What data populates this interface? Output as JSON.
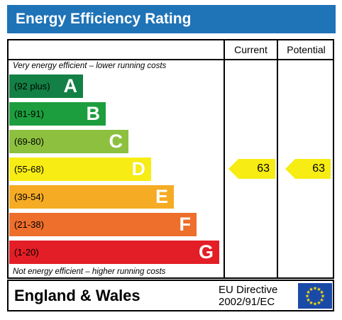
{
  "header": {
    "title": "Energy Efficiency Rating"
  },
  "columns": {
    "current": "Current",
    "potential": "Potential"
  },
  "notes": {
    "top": "Very energy efficient – lower running costs",
    "bottom": "Not energy efficient – higher running costs"
  },
  "chart_data": {
    "type": "bar",
    "title": "Energy Efficiency Rating",
    "bands": [
      {
        "range": "(92 plus)",
        "letter": "A",
        "color": "#138045",
        "letter_color": "#ffffff"
      },
      {
        "range": "(81-91)",
        "letter": "B",
        "color": "#1d9e3e",
        "letter_color": "#ffffff"
      },
      {
        "range": "(69-80)",
        "letter": "C",
        "color": "#8dc03f",
        "letter_color": "#ffffff"
      },
      {
        "range": "(55-68)",
        "letter": "D",
        "color": "#f7ec14",
        "letter_color": "#ffffff"
      },
      {
        "range": "(39-54)",
        "letter": "E",
        "color": "#f5ab24",
        "letter_color": "#ffffff"
      },
      {
        "range": "(21-38)",
        "letter": "F",
        "color": "#ee6e2b",
        "letter_color": "#ffffff"
      },
      {
        "range": "(1-20)",
        "letter": "G",
        "color": "#e31e26",
        "letter_color": "#ffffff"
      }
    ],
    "current": {
      "value": 63,
      "band": "D",
      "color": "#f7ec14"
    },
    "potential": {
      "value": 63,
      "band": "D",
      "color": "#f7ec14"
    }
  },
  "footer": {
    "region": "England & Wales",
    "directive_line1": "EU Directive",
    "directive_line2": "2002/91/EC",
    "flag_icon": "eu-flag-icon",
    "flag_color": "#1a4aa8",
    "star_color": "#ffe000"
  }
}
